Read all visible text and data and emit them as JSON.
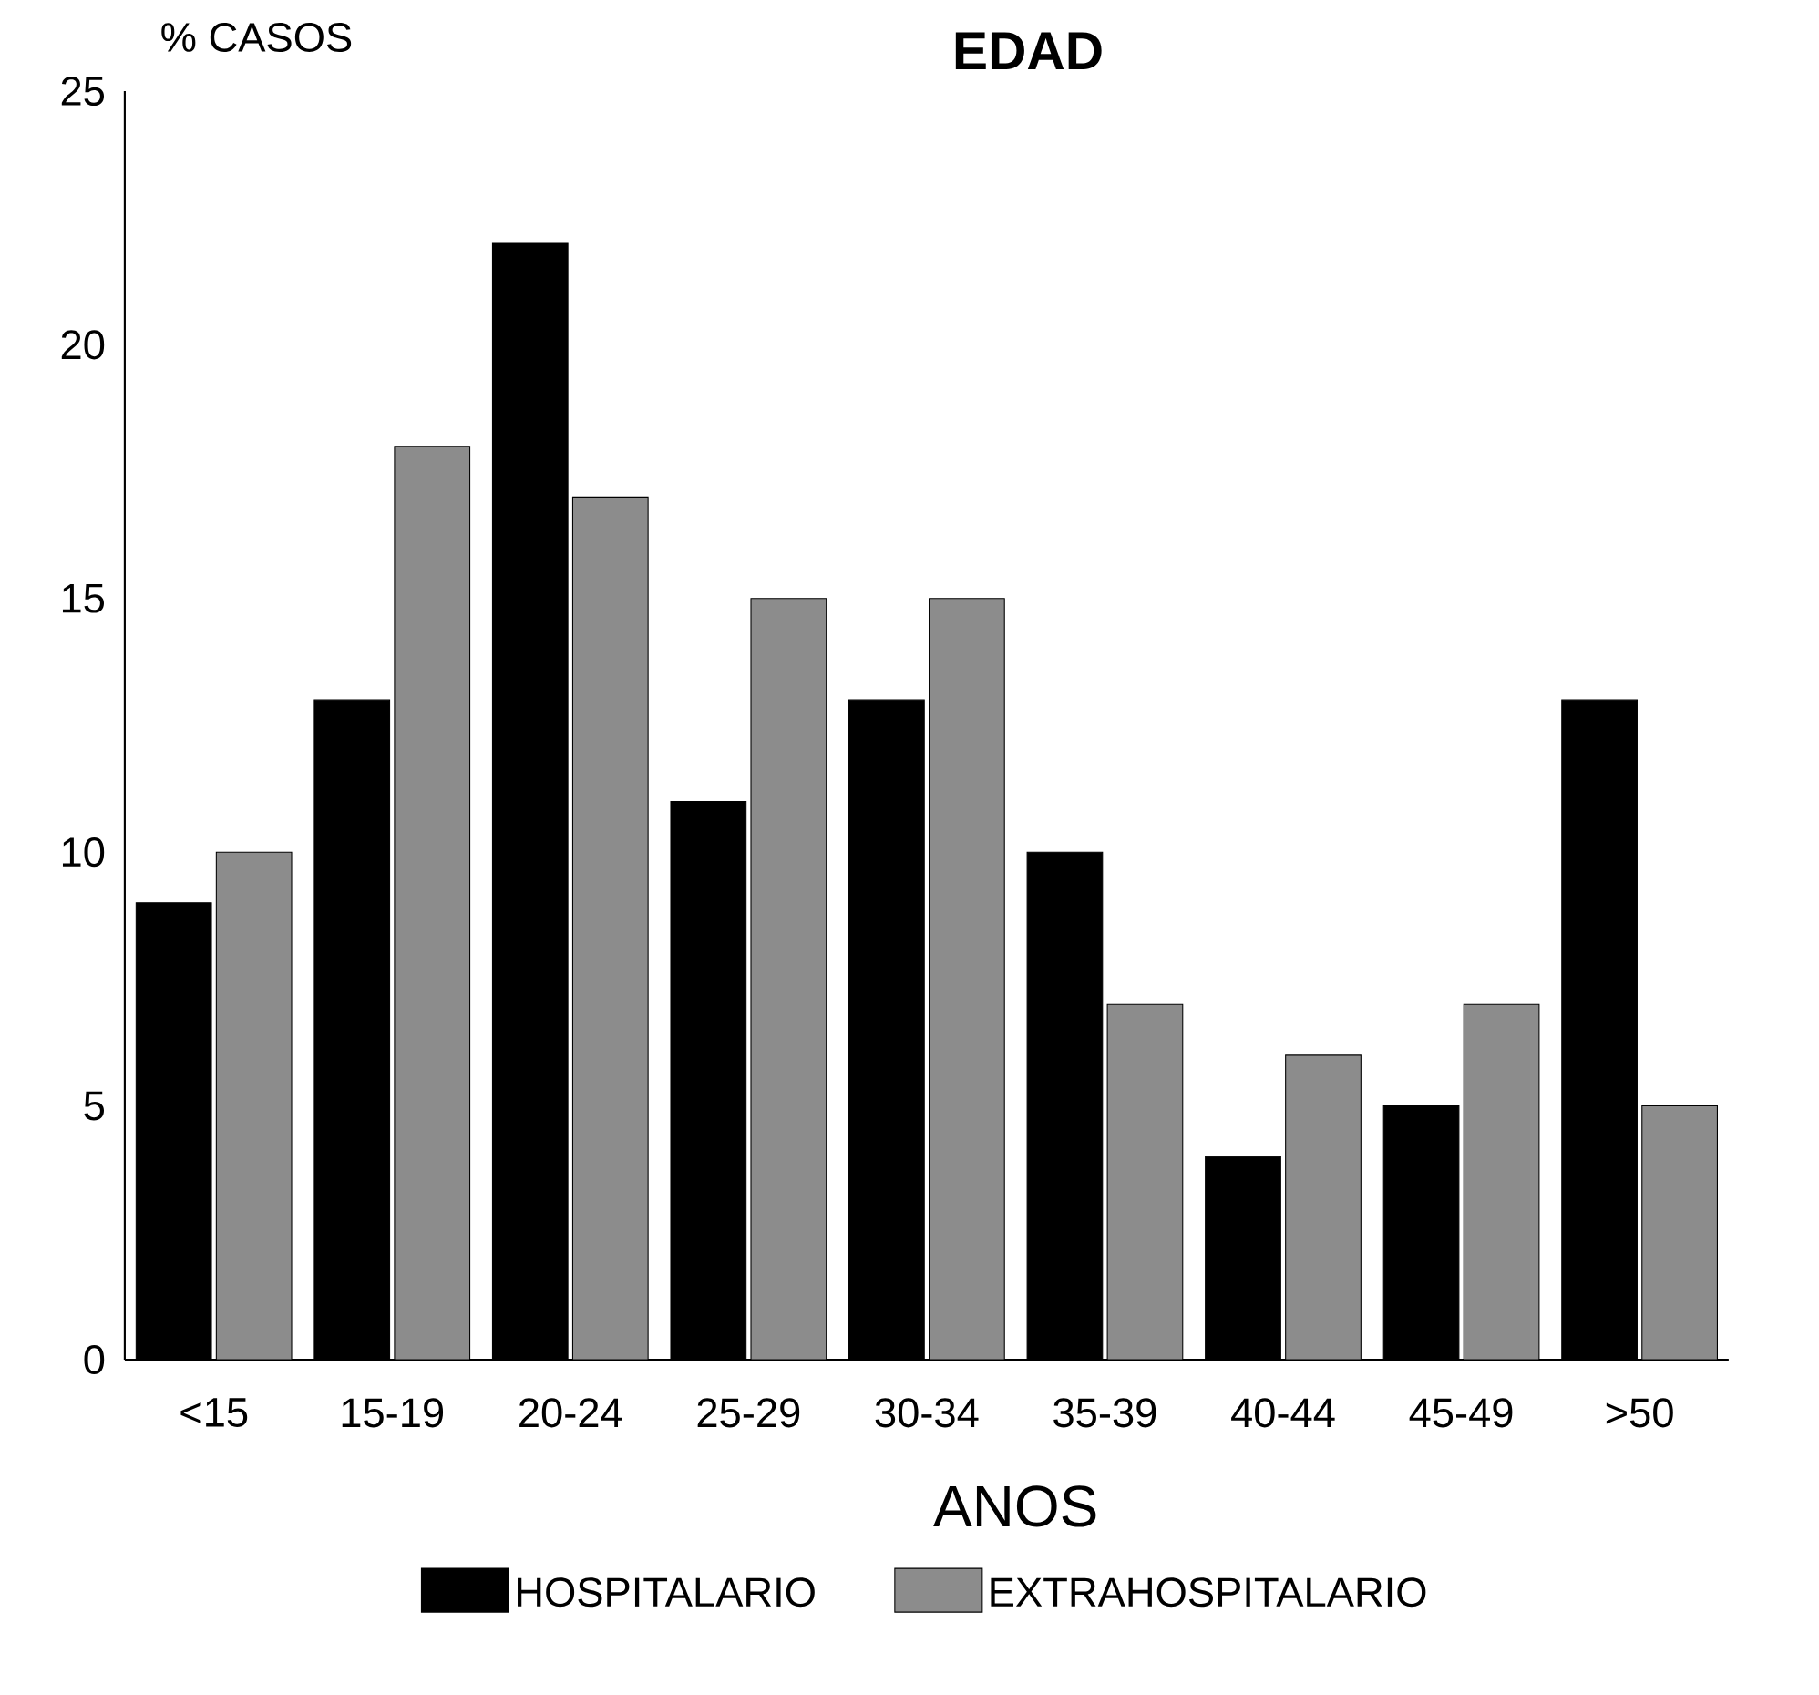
{
  "chart_data": {
    "type": "bar",
    "title": "EDAD",
    "xlabel": "ANOS",
    "ylabel": "% CASOS",
    "categories": [
      "<15",
      "15-19",
      "20-24",
      "25-29",
      "30-34",
      "35-39",
      "40-44",
      "45-49",
      ">50"
    ],
    "series": [
      {
        "name": "HOSPITALARIO",
        "color": "#000000",
        "values": [
          9,
          13,
          22,
          11,
          13,
          10,
          4,
          5,
          13
        ]
      },
      {
        "name": "EXTRAHOSPITALARIO",
        "color": "#8c8c8c",
        "values": [
          10,
          18,
          17,
          15,
          15,
          7,
          6,
          7,
          5
        ]
      }
    ],
    "ylim": [
      0,
      25
    ],
    "yticks": [
      0,
      5,
      10,
      15,
      20,
      25
    ],
    "grid": false,
    "legend": "bottom"
  }
}
